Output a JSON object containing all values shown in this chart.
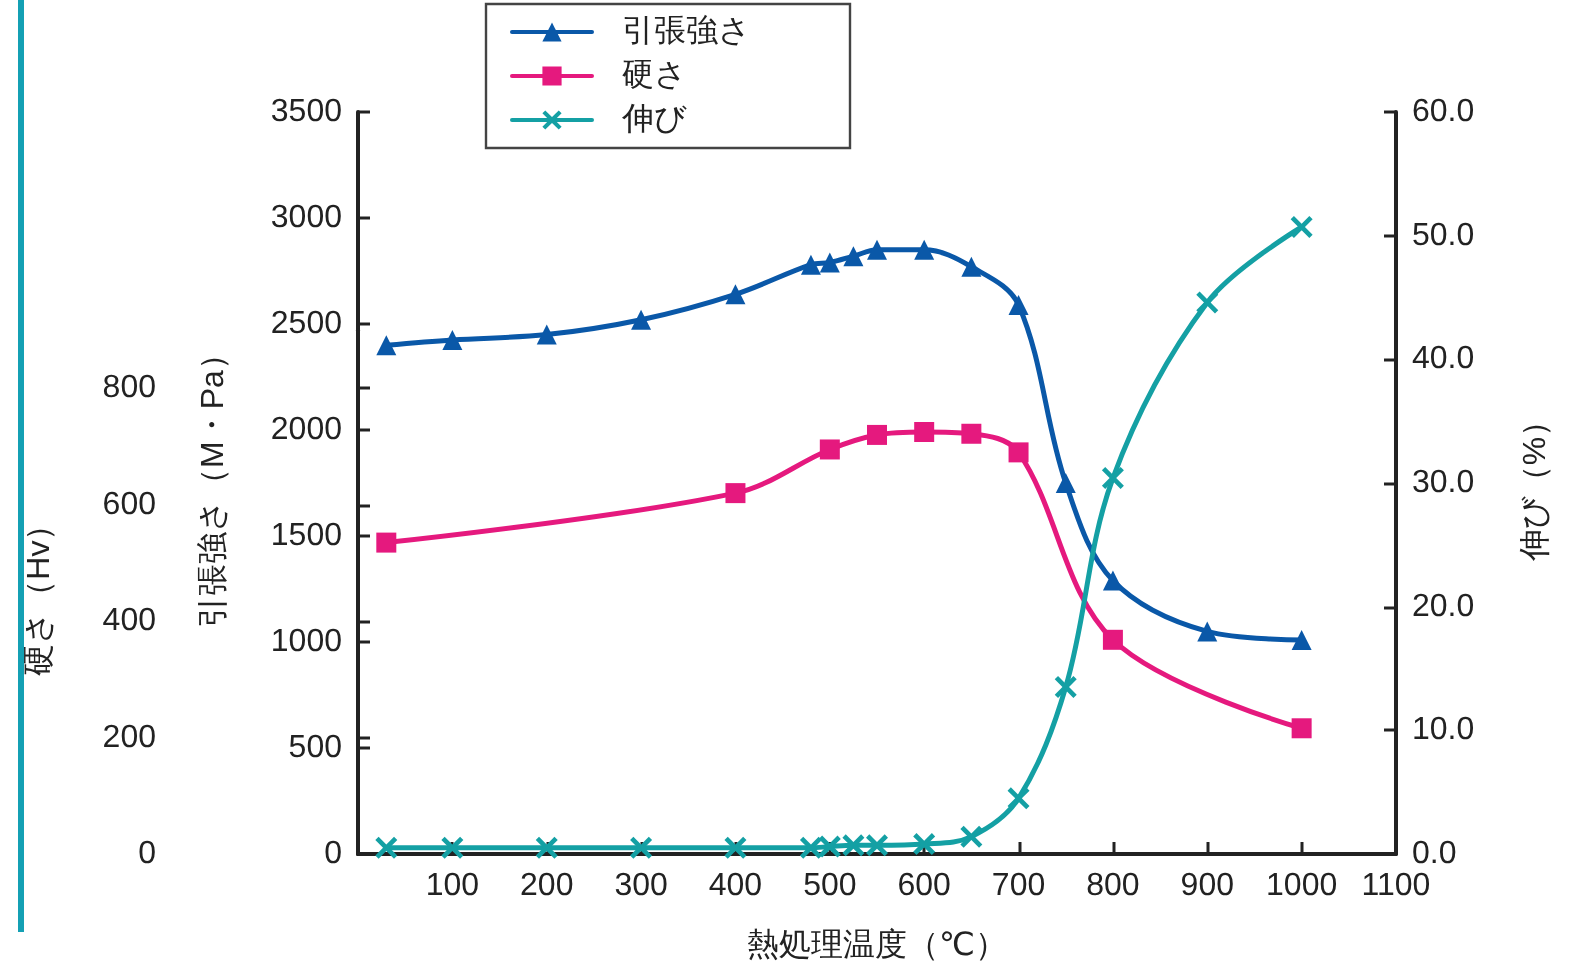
{
  "chart_data": {
    "type": "line",
    "xlabel": "熱処理温度（℃）",
    "ylabel": "引張強さ（M・Pa）",
    "y2label": "伸び（%）",
    "y3label": "硬さ（Hv）",
    "xlim": [
      0,
      1100
    ],
    "xticks": [
      100,
      200,
      300,
      400,
      500,
      600,
      700,
      800,
      900,
      1000,
      1100
    ],
    "ylim": [
      0,
      3500
    ],
    "yticks": [
      0,
      500,
      1000,
      1500,
      2000,
      2500,
      3000,
      3500
    ],
    "y2lim": [
      0,
      60
    ],
    "y2ticks": [
      {
        "value": 0,
        "label": "0.0"
      },
      {
        "value": 10,
        "label": "10.0"
      },
      {
        "value": 20,
        "label": "20.0"
      },
      {
        "value": 30,
        "label": "30.0"
      },
      {
        "value": 40,
        "label": "40.0"
      },
      {
        "value": 50,
        "label": "50.0"
      },
      {
        "value": 60,
        "label": "60.0"
      }
    ],
    "y3lim": [
      0,
      900
    ],
    "y3ticks": [
      0,
      200,
      400,
      600,
      800
    ],
    "grid": false,
    "legend": "top",
    "line_style": "solid",
    "series": [
      {
        "name": "引張強さ",
        "color": "#0a58a8",
        "marker": "triangle",
        "x": [
          30,
          100,
          200,
          300,
          400,
          480,
          500,
          525,
          550,
          600,
          650,
          700,
          750,
          800,
          900,
          1000
        ],
        "values": [
          2400,
          2425,
          2450,
          2520,
          2640,
          2780,
          2790,
          2820,
          2850,
          2850,
          2770,
          2590,
          1750,
          1290,
          1050,
          1010
        ]
      },
      {
        "name": "硬さ",
        "color": "#e5197e",
        "marker": "square",
        "axis": "y3",
        "x": [
          30,
          400,
          500,
          550,
          600,
          650,
          700,
          800,
          1000
        ],
        "values": [
          535,
          620,
          695,
          720,
          725,
          722,
          690,
          368,
          216
        ]
      },
      {
        "name": "伸び",
        "color": "#14a0a4",
        "marker": "cross",
        "axis": "y2",
        "x": [
          30,
          100,
          200,
          300,
          400,
          480,
          500,
          525,
          550,
          600,
          650,
          700,
          750,
          800,
          900,
          1000
        ],
        "values": [
          0.5,
          0.5,
          0.5,
          0.5,
          0.5,
          0.5,
          0.6,
          0.7,
          0.7,
          0.8,
          1.4,
          4.5,
          13.5,
          30.4,
          44.6,
          50.7
        ]
      }
    ]
  }
}
